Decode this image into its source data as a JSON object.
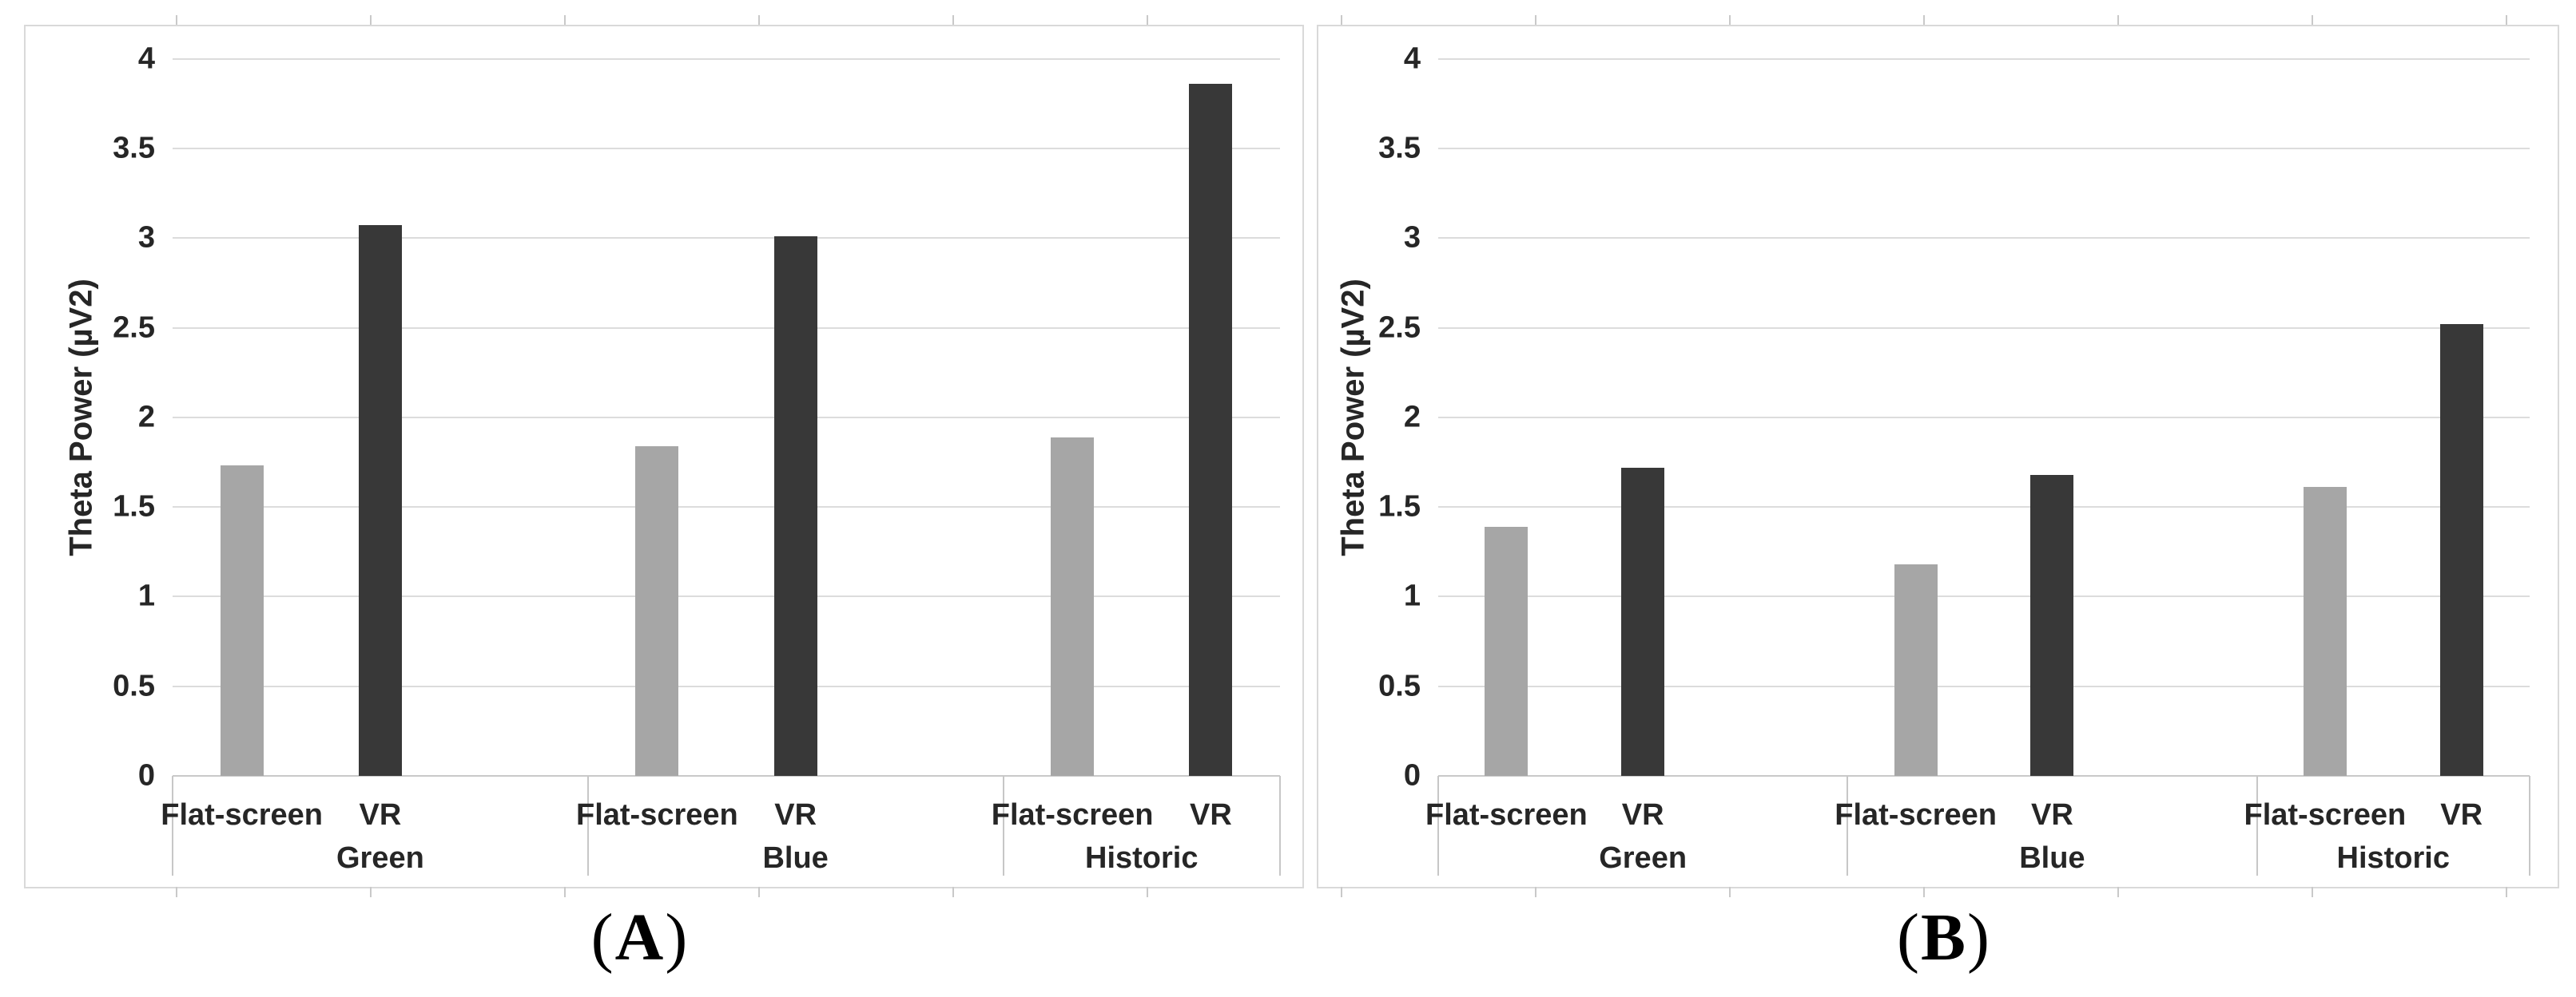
{
  "chart_data": [
    {
      "type": "bar",
      "panel": "A",
      "caption": {
        "prefix": "(",
        "letter": "A",
        "suffix": ")"
      },
      "title": "",
      "ylabel": "Theta Power (µV2)",
      "xlabel": "",
      "ylim": [
        0,
        4
      ],
      "ytick_step": 0.5,
      "grid": true,
      "legend": "none",
      "categories": [
        "Green",
        "Blue",
        "Historic"
      ],
      "series": [
        {
          "name": "Flat-screen",
          "color": "#a6a6a6",
          "values": [
            1.73,
            1.84,
            1.89
          ]
        },
        {
          "name": "VR",
          "color": "#383838",
          "values": [
            3.07,
            3.01,
            3.86
          ]
        }
      ]
    },
    {
      "type": "bar",
      "panel": "B",
      "caption": {
        "prefix": "(",
        "letter": "B",
        "suffix": ")"
      },
      "title": "",
      "ylabel": "Theta Power (µV2)",
      "xlabel": "",
      "ylim": [
        0,
        4
      ],
      "ytick_step": 0.5,
      "grid": true,
      "legend": "none",
      "categories": [
        "Green",
        "Blue",
        "Historic"
      ],
      "series": [
        {
          "name": "Flat-screen",
          "color": "#a6a6a6",
          "values": [
            1.39,
            1.18,
            1.61
          ]
        },
        {
          "name": "VR",
          "color": "#383838",
          "values": [
            1.72,
            1.68,
            2.52
          ]
        }
      ]
    }
  ],
  "colors": {
    "bar_flat_screen": "#a6a6a6",
    "bar_vr": "#383838",
    "gridline": "#dcdcdc",
    "frame": "#d9d9d9",
    "text": "#262626"
  }
}
